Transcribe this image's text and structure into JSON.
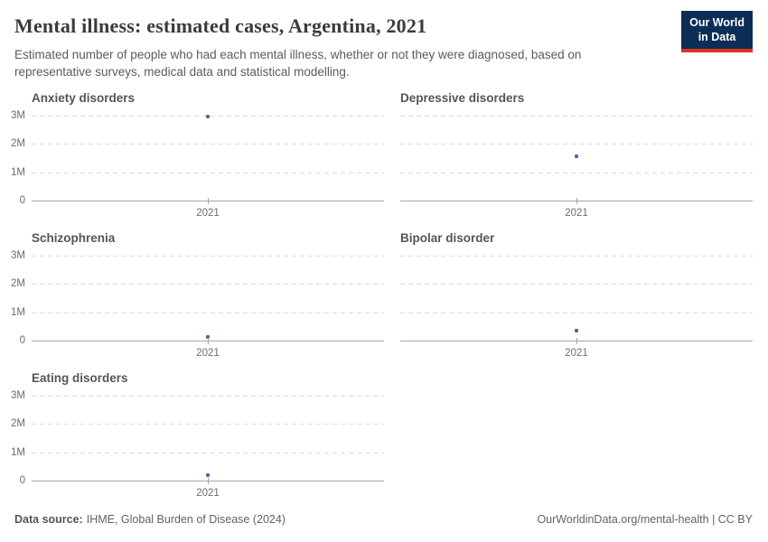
{
  "header": {
    "title": "Mental illness: estimated cases, Argentina, 2021",
    "subtitle": "Estimated number of people who had each mental illness, whether or not they were diagnosed, based on representative surveys, medical data and statistical modelling.",
    "logo": {
      "line1": "Our World",
      "line2": "in Data"
    }
  },
  "colors": {
    "point": "#4568a6",
    "logo_bg": "#0c2d56",
    "logo_accent": "#e0301f",
    "gridline": "#dbdbdb",
    "axis": "#a6a6a6"
  },
  "chart_data": {
    "type": "scatter",
    "x": [
      2021
    ],
    "x_tick_label": "2021",
    "ylim": [
      0,
      3000000
    ],
    "y_ticks": [
      "3M",
      "2M",
      "1M",
      "0"
    ],
    "grid": "dashed-horizontal",
    "legend": "none",
    "facets": [
      {
        "title": "Anxiety disorders",
        "values": [
          2970000
        ]
      },
      {
        "title": "Depressive disorders",
        "values": [
          1550000
        ]
      },
      {
        "title": "Schizophrenia",
        "values": [
          130000
        ]
      },
      {
        "title": "Bipolar disorder",
        "values": [
          350000
        ]
      },
      {
        "title": "Eating disorders",
        "values": [
          180000
        ]
      }
    ]
  },
  "footer": {
    "source_label": "Data source:",
    "source_text": "IHME, Global Burden of Disease (2024)",
    "link_text": "OurWorldinData.org/mental-health | CC BY"
  }
}
